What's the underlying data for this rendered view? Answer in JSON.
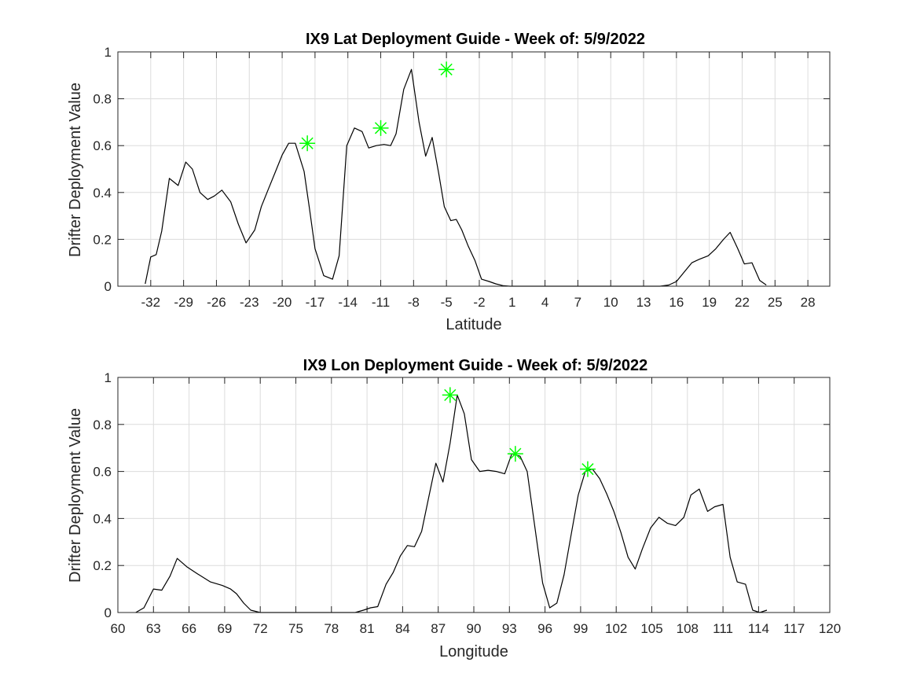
{
  "chart_data": [
    {
      "type": "line",
      "title": "IX9 Lat Deployment Guide - Week of: 5/9/2022",
      "xlabel": "Latitude",
      "ylabel": "Drifter Deployment Value",
      "xlim": [
        -35,
        30
      ],
      "ylim": [
        0,
        1
      ],
      "xticks": [
        "-32",
        "-29",
        "-26",
        "-23",
        "-20",
        "-17",
        "-14",
        "-11",
        "-8",
        "-5",
        "-2",
        "1",
        "4",
        "7",
        "10",
        "13",
        "16",
        "19",
        "22",
        "25",
        "28"
      ],
      "xtick_values": [
        -32,
        -29,
        -26,
        -23,
        -20,
        -17,
        -14,
        -11,
        -8,
        -5,
        -2,
        1,
        4,
        7,
        10,
        13,
        16,
        19,
        22,
        25,
        28
      ],
      "yticks": [
        "0",
        "0.2",
        "0.4",
        "0.6",
        "0.8",
        "1"
      ],
      "ytick_values": [
        0,
        0.2,
        0.4,
        0.6,
        0.8,
        1
      ],
      "grid": true,
      "series": [
        {
          "color": "#000000",
          "x": [
            -32.5,
            -32,
            -31.5,
            -31,
            -30.3,
            -29.5,
            -28.8,
            -28.2,
            -27.5,
            -26.8,
            -26.2,
            -25.5,
            -24.7,
            -24,
            -23.3,
            -22.5,
            -21.9,
            -21.3,
            -20.6,
            -20,
            -19.4,
            -18.8,
            -18,
            -17.5,
            -17,
            -16.2,
            -15.4,
            -14.8,
            -14.1,
            -13.4,
            -12.7,
            -12.1,
            -11.4,
            -10.7,
            -10.1,
            -9.6,
            -8.9,
            -8.2,
            -7.5,
            -6.9,
            -6.3,
            -5.7,
            -5.2,
            -4.6,
            -4.1,
            -3.6,
            -3,
            -2.4,
            -1.8,
            -1.1,
            -0.5,
            0.2,
            0.8,
            1.5,
            2.2,
            2.9,
            3.6,
            4.2,
            4.8,
            5.5,
            6.2,
            6.8,
            7.5,
            9.5,
            12,
            14.5,
            15.3,
            16,
            16.7,
            17.4,
            18.1,
            18.9,
            19.6,
            20.3,
            20.9,
            21.6,
            22.2,
            22.9,
            23.6,
            24.2
          ],
          "y": [
            0.01,
            0.125,
            0.135,
            0.235,
            0.46,
            0.43,
            0.53,
            0.5,
            0.4,
            0.37,
            0.385,
            0.41,
            0.36,
            0.265,
            0.185,
            0.24,
            0.34,
            0.41,
            0.49,
            0.56,
            0.61,
            0.61,
            0.49,
            0.33,
            0.16,
            0.045,
            0.03,
            0.13,
            0.6,
            0.675,
            0.66,
            0.59,
            0.6,
            0.605,
            0.6,
            0.65,
            0.84,
            0.925,
            0.7,
            0.555,
            0.635,
            0.48,
            0.34,
            0.28,
            0.285,
            0.24,
            0.17,
            0.11,
            0.03,
            0.02,
            0.01,
            0.002,
            0.0,
            0.0,
            0.0,
            0.0,
            0.0,
            0.0,
            0.0,
            0.0,
            0.0,
            0.0,
            0.0,
            0.0,
            0.0,
            0.0,
            0.005,
            0.02,
            0.06,
            0.1,
            0.115,
            0.13,
            0.16,
            0.2,
            0.23,
            0.16,
            0.095,
            0.1,
            0.025,
            0.005
          ]
        }
      ],
      "markers": {
        "color": "#00ff00",
        "x": [
          -17.7,
          -11.0,
          -5.0
        ],
        "y": [
          0.61,
          0.675,
          0.925
        ]
      }
    },
    {
      "type": "line",
      "title": "IX9 Lon Deployment Guide - Week of: 5/9/2022",
      "xlabel": "Longitude",
      "ylabel": "Drifter Deployment Value",
      "xlim": [
        60,
        120
      ],
      "ylim": [
        0,
        1
      ],
      "xticks": [
        "60",
        "63",
        "66",
        "69",
        "72",
        "75",
        "78",
        "81",
        "84",
        "87",
        "90",
        "93",
        "96",
        "99",
        "102",
        "105",
        "108",
        "111",
        "114",
        "117",
        "120"
      ],
      "xtick_values": [
        60,
        63,
        66,
        69,
        72,
        75,
        78,
        81,
        84,
        87,
        90,
        93,
        96,
        99,
        102,
        105,
        108,
        111,
        114,
        117,
        120
      ],
      "yticks": [
        "0",
        "0.2",
        "0.4",
        "0.6",
        "0.8",
        "1"
      ],
      "ytick_values": [
        0,
        0.2,
        0.4,
        0.6,
        0.8,
        1
      ],
      "grid": true,
      "series": [
        {
          "color": "#000000",
          "x": [
            61.5,
            62.2,
            63,
            63.7,
            64.4,
            65,
            65.8,
            66.7,
            67.8,
            68.8,
            69.5,
            70,
            70.6,
            71.2,
            72,
            73,
            74,
            75,
            76,
            77,
            78,
            79,
            80,
            80.7,
            81.3,
            81.9,
            82.6,
            83.2,
            83.8,
            84.4,
            85,
            85.6,
            86.2,
            86.8,
            87.4,
            88,
            88.6,
            89.2,
            89.8,
            90.5,
            91.2,
            91.9,
            92.6,
            93.2,
            93.9,
            94.5,
            95.1,
            95.8,
            96.4,
            97,
            97.6,
            98.2,
            98.8,
            99.4,
            100,
            100.6,
            101.2,
            101.8,
            102.4,
            103,
            103.6,
            104.2,
            104.9,
            105.6,
            106.3,
            107,
            107.7,
            108.3,
            109,
            109.7,
            110.3,
            111,
            111.6,
            112.2,
            112.9,
            113.5,
            114.1,
            114.7
          ],
          "y": [
            0.0,
            0.02,
            0.1,
            0.095,
            0.155,
            0.23,
            0.195,
            0.165,
            0.13,
            0.115,
            0.1,
            0.08,
            0.04,
            0.01,
            0.0,
            0.0,
            0.0,
            0.0,
            0.0,
            0.0,
            0.0,
            0.0,
            0.0,
            0.01,
            0.02,
            0.025,
            0.12,
            0.17,
            0.24,
            0.285,
            0.28,
            0.345,
            0.49,
            0.635,
            0.555,
            0.72,
            0.925,
            0.845,
            0.65,
            0.6,
            0.605,
            0.6,
            0.59,
            0.675,
            0.665,
            0.6,
            0.38,
            0.125,
            0.02,
            0.04,
            0.16,
            0.33,
            0.5,
            0.6,
            0.61,
            0.57,
            0.505,
            0.43,
            0.34,
            0.235,
            0.185,
            0.27,
            0.36,
            0.405,
            0.38,
            0.37,
            0.405,
            0.5,
            0.525,
            0.43,
            0.45,
            0.46,
            0.235,
            0.13,
            0.12,
            0.01,
            0.0,
            0.01
          ]
        }
      ],
      "markers": {
        "color": "#00ff00",
        "x": [
          88.0,
          93.5,
          99.6
        ],
        "y": [
          0.925,
          0.675,
          0.61
        ]
      }
    }
  ]
}
